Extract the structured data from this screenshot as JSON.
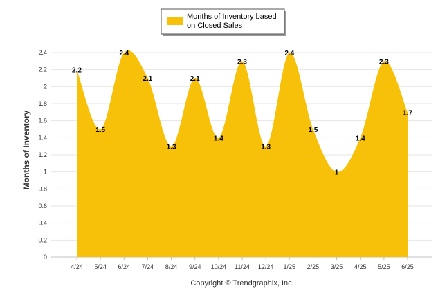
{
  "chart_data": {
    "type": "area",
    "categories": [
      "4/24",
      "5/24",
      "6/24",
      "7/24",
      "8/24",
      "9/24",
      "10/24",
      "11/24",
      "12/24",
      "1/25",
      "2/25",
      "3/25",
      "4/25",
      "5/25",
      "6/25"
    ],
    "series": [
      {
        "name": "Months of Inventory based on Closed Sales",
        "values": [
          2.2,
          1.5,
          2.4,
          2.1,
          1.3,
          2.1,
          1.4,
          2.3,
          1.3,
          2.4,
          1.5,
          1,
          1.4,
          2.3,
          1.7
        ],
        "labels": [
          "2.2",
          "1.5",
          "2.4",
          "2.1",
          "1.3",
          "2.1",
          "1.4",
          "2.3",
          "1.3",
          "2.4",
          "1.5",
          "1",
          "1.4",
          "2.3",
          "1.7"
        ]
      }
    ],
    "legend": {
      "line1": "Months of Inventory based",
      "line2": "on Closed Sales",
      "position": "top-center"
    },
    "ylabel": "Months of Inventory",
    "ylim": [
      0,
      2.4
    ],
    "yticks": [
      "0",
      "0.2",
      "0.4",
      "0.6",
      "0.8",
      "1",
      "1.2",
      "1.4",
      "1.6",
      "1.8",
      "2",
      "2.2",
      "2.4"
    ],
    "grid": true,
    "colors": {
      "area": "#F7C10A",
      "grid": "#e6e6e6",
      "axis": "#c0c0c0"
    }
  },
  "footer": {
    "copyright": "Copyright © Trendgraphix, Inc."
  }
}
